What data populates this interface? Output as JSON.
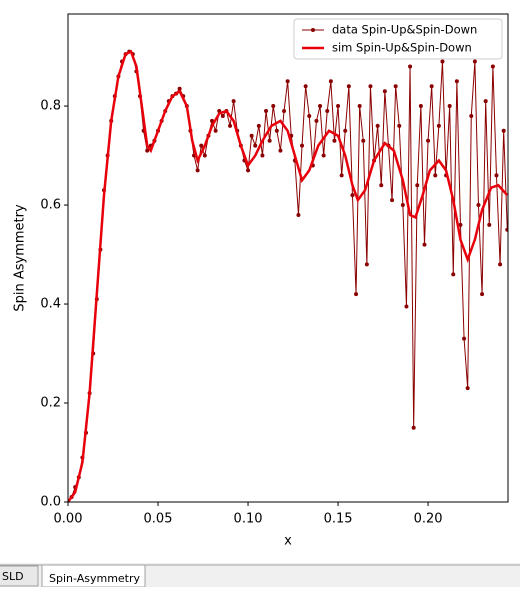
{
  "chart_data": {
    "type": "line",
    "xlabel": "x",
    "ylabel": "Spin Asymmetry",
    "xlim": [
      0,
      0.2444
    ],
    "ylim": [
      0,
      0.986
    ],
    "xticks": [
      {
        "value": 0,
        "label": "0.00"
      },
      {
        "value": 0.05,
        "label": "0.05"
      },
      {
        "value": 0.1,
        "label": "0.10"
      },
      {
        "value": 0.15,
        "label": "0.15"
      },
      {
        "value": 0.2,
        "label": "0.20"
      }
    ],
    "yticks": [
      {
        "value": 0,
        "label": "0.0"
      },
      {
        "value": 0.2,
        "label": "0.2"
      },
      {
        "value": 0.4,
        "label": "0.4"
      },
      {
        "value": 0.6,
        "label": "0.6"
      },
      {
        "value": 0.8,
        "label": "0.8"
      }
    ],
    "legend": "upper right",
    "series": [
      {
        "name": "data Spin-Up&Spin-Down",
        "color": "#8b0000",
        "marker": true,
        "width": 1,
        "x": [
          0,
          0.002,
          0.004,
          0.006,
          0.008,
          0.01,
          0.012,
          0.014,
          0.016,
          0.018,
          0.02,
          0.022,
          0.024,
          0.026,
          0.028,
          0.03,
          0.032,
          0.034,
          0.036,
          0.038,
          0.04,
          0.042,
          0.044,
          0.046,
          0.048,
          0.05,
          0.052,
          0.054,
          0.056,
          0.058,
          0.06,
          0.062,
          0.064,
          0.066,
          0.068,
          0.07,
          0.072,
          0.074,
          0.076,
          0.078,
          0.08,
          0.082,
          0.084,
          0.086,
          0.088,
          0.09,
          0.092,
          0.094,
          0.096,
          0.098,
          0.1,
          0.102,
          0.104,
          0.106,
          0.108,
          0.11,
          0.112,
          0.114,
          0.116,
          0.118,
          0.12,
          0.122,
          0.124,
          0.126,
          0.128,
          0.13,
          0.132,
          0.134,
          0.136,
          0.138,
          0.14,
          0.142,
          0.144,
          0.146,
          0.148,
          0.15,
          0.152,
          0.154,
          0.156,
          0.158,
          0.16,
          0.162,
          0.164,
          0.166,
          0.168,
          0.17,
          0.172,
          0.174,
          0.176,
          0.178,
          0.18,
          0.182,
          0.184,
          0.186,
          0.188,
          0.19,
          0.192,
          0.194,
          0.196,
          0.198,
          0.2,
          0.202,
          0.204,
          0.206,
          0.208,
          0.21,
          0.212,
          0.214,
          0.216,
          0.218,
          0.22,
          0.222,
          0.224,
          0.226,
          0.228,
          0.23,
          0.232,
          0.234,
          0.236,
          0.238,
          0.24,
          0.242,
          0.244
        ],
        "values": [
          0,
          0.01,
          0.03,
          0.05,
          0.09,
          0.14,
          0.22,
          0.3,
          0.41,
          0.51,
          0.63,
          0.7,
          0.77,
          0.82,
          0.86,
          0.89,
          0.905,
          0.91,
          0.905,
          0.87,
          0.82,
          0.75,
          0.71,
          0.72,
          0.73,
          0.75,
          0.77,
          0.79,
          0.81,
          0.82,
          0.825,
          0.835,
          0.82,
          0.8,
          0.75,
          0.7,
          0.67,
          0.72,
          0.7,
          0.74,
          0.77,
          0.75,
          0.79,
          0.78,
          0.79,
          0.76,
          0.81,
          0.75,
          0.72,
          0.69,
          0.67,
          0.74,
          0.72,
          0.76,
          0.7,
          0.79,
          0.73,
          0.8,
          0.75,
          0.71,
          0.79,
          0.85,
          0.74,
          0.69,
          0.58,
          0.72,
          0.84,
          0.78,
          0.68,
          0.77,
          0.8,
          0.7,
          0.79,
          0.85,
          0.73,
          0.8,
          0.66,
          0.75,
          0.84,
          0.62,
          0.42,
          0.8,
          0.73,
          0.48,
          0.84,
          0.69,
          0.76,
          0.64,
          0.83,
          0.72,
          0.61,
          0.84,
          0.76,
          0.6,
          0.395,
          0.88,
          0.15,
          0.64,
          0.8,
          0.52,
          0.73,
          0.84,
          0.66,
          0.76,
          0.89,
          0.66,
          0.8,
          0.46,
          0.85,
          0.56,
          0.33,
          0.23,
          0.78,
          0.89,
          0.6,
          0.42,
          0.81,
          0.56,
          0.88,
          0.66,
          0.48,
          0.75,
          0.55
        ]
      },
      {
        "name": "sim Spin-Up&Spin-Down",
        "color": "#e8000b",
        "marker": false,
        "width": 2.5,
        "x": [
          0,
          0.004,
          0.008,
          0.012,
          0.016,
          0.02,
          0.024,
          0.028,
          0.032,
          0.035,
          0.038,
          0.041,
          0.044,
          0.046,
          0.05,
          0.054,
          0.058,
          0.062,
          0.066,
          0.069,
          0.072,
          0.076,
          0.08,
          0.084,
          0.088,
          0.092,
          0.096,
          0.1,
          0.104,
          0.108,
          0.113,
          0.118,
          0.122,
          0.126,
          0.13,
          0.134,
          0.139,
          0.145,
          0.15,
          0.154,
          0.158,
          0.161,
          0.165,
          0.17,
          0.176,
          0.181,
          0.186,
          0.19,
          0.193,
          0.197,
          0.201,
          0.206,
          0.21,
          0.214,
          0.218,
          0.222,
          0.226,
          0.23,
          0.235,
          0.239,
          0.244
        ],
        "values": [
          0,
          0.02,
          0.08,
          0.22,
          0.42,
          0.62,
          0.77,
          0.86,
          0.905,
          0.91,
          0.88,
          0.8,
          0.72,
          0.71,
          0.75,
          0.79,
          0.82,
          0.83,
          0.8,
          0.73,
          0.69,
          0.72,
          0.76,
          0.785,
          0.79,
          0.77,
          0.72,
          0.68,
          0.7,
          0.73,
          0.76,
          0.77,
          0.75,
          0.7,
          0.65,
          0.67,
          0.72,
          0.75,
          0.74,
          0.7,
          0.64,
          0.61,
          0.63,
          0.69,
          0.725,
          0.71,
          0.65,
          0.58,
          0.575,
          0.62,
          0.67,
          0.69,
          0.67,
          0.61,
          0.53,
          0.49,
          0.53,
          0.59,
          0.635,
          0.64,
          0.62
        ]
      }
    ]
  },
  "tabs": [
    "SLD",
    "Spin-Asymmetry"
  ]
}
